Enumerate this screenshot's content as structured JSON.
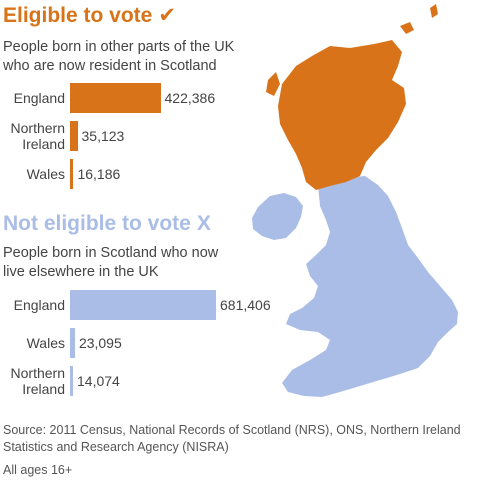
{
  "colors": {
    "eligible": "#d9731a",
    "not_eligible": "#a9bde6",
    "text": "#444444"
  },
  "eligible": {
    "title": "Eligible to vote",
    "mark": "✔",
    "subtitle_line1": "People born in other parts of the UK",
    "subtitle_line2": "who are now resident in Scotland"
  },
  "not_eligible": {
    "title": "Not eligible to vote",
    "mark": "X",
    "subtitle_line1": "People born in Scotland who now",
    "subtitle_line2": "live elsewhere in the UK"
  },
  "source": "Source: 2011 Census, National Records of Scotland (NRS), ONS, Northern Ireland Statistics and Research Agency (NISRA)",
  "note": "All ages 16+",
  "chart_data": [
    {
      "type": "bar",
      "orientation": "horizontal",
      "title": "Eligible to vote",
      "subtitle": "People born in other parts of the UK who are now resident in Scotland",
      "categories": [
        "England",
        "Northern\nIreland",
        "Wales"
      ],
      "values": [
        422386,
        35123,
        16186
      ],
      "value_labels": [
        "422,386",
        "35,123",
        "16,186"
      ],
      "color": "#d9731a"
    },
    {
      "type": "bar",
      "orientation": "horizontal",
      "title": "Not eligible to vote",
      "subtitle": "People born in Scotland who now live elsewhere in the UK",
      "categories": [
        "England",
        "Wales",
        "Northern\nIreland"
      ],
      "values": [
        681406,
        23095,
        14074
      ],
      "value_labels": [
        "681,406",
        "23,095",
        "14,074"
      ],
      "color": "#a9bde6"
    }
  ]
}
